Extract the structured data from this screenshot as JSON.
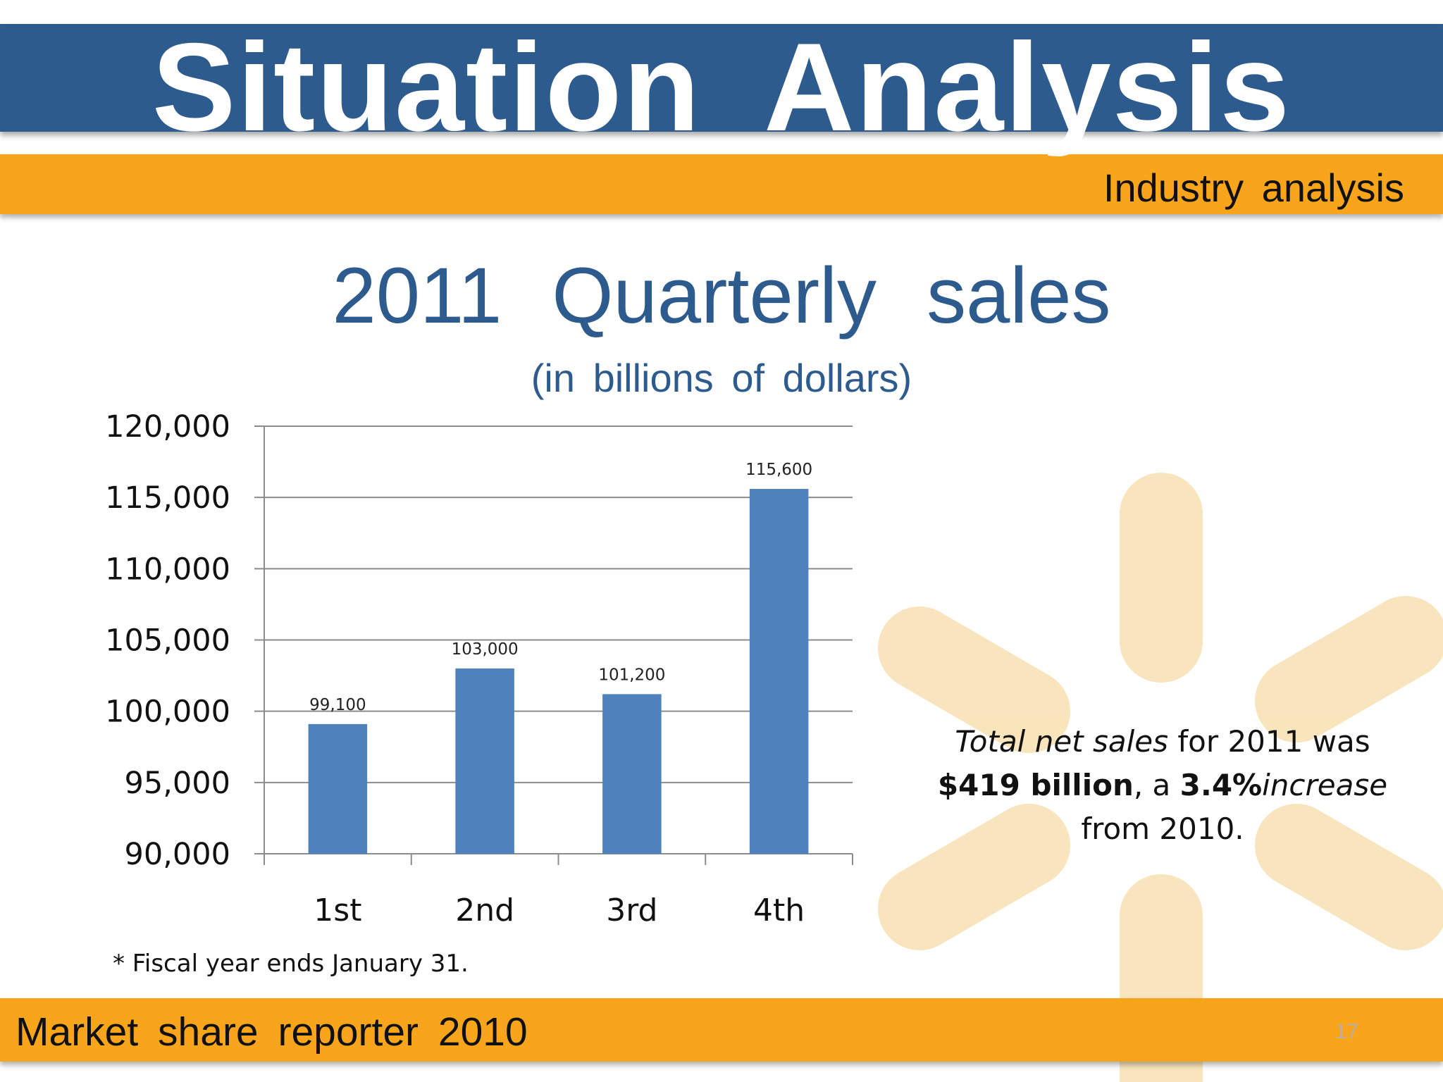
{
  "slide": {
    "title": "Situation  Analysis",
    "subtitle": "Industry  analysis",
    "footer": "Market  share  reporter  2010",
    "page_number": "17"
  },
  "chart_data": {
    "type": "bar",
    "title": "2011   Quarterly  sales",
    "subtitle": "(in  billions  of  dollars)",
    "categories": [
      "1st",
      "2nd",
      "3rd",
      "4th"
    ],
    "values": [
      99100,
      103000,
      101200,
      115600
    ],
    "value_labels": [
      "99,100",
      "103,000",
      "101,200",
      "115,600"
    ],
    "ylim": [
      90000,
      120000
    ],
    "yticks": [
      90000,
      95000,
      100000,
      105000,
      110000,
      115000,
      120000
    ],
    "ytick_labels": [
      "90,000",
      "95,000",
      "100,000",
      "105,000",
      "110,000",
      "115,000",
      "120,000"
    ],
    "grid": true,
    "bar_color": "#4f81bd"
  },
  "footnote": "* Fiscal year ends January 31.",
  "note": {
    "part1_italic": "Total net sales",
    "part2": " for 2011 was",
    "part3_bold": "$419 billion",
    "part4": ", a ",
    "part5_bold": "3.4%",
    "part6_italic": "increase",
    "part7": "from 2010."
  },
  "colors": {
    "title_bar": "#2d5b8e",
    "accent_bar": "#f9a51b",
    "spark": "#f7e2b5"
  }
}
